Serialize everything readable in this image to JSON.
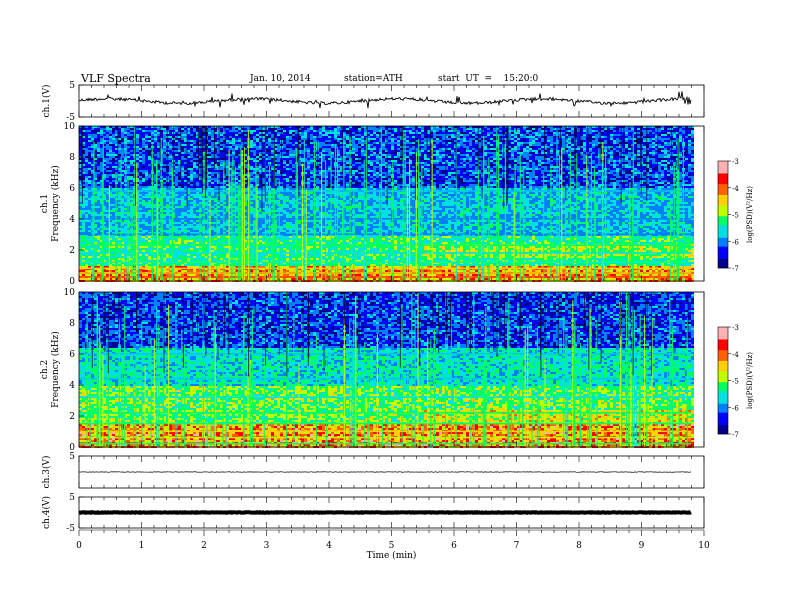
{
  "header": {
    "title": "VLF Spectra",
    "date": "Jan. 10, 2014",
    "station": "station=ATH",
    "start": "start  UT  =    15:20:0"
  },
  "chart_data": [
    {
      "type": "line",
      "panel": "ch1-waveform",
      "ylabel": "ch.1(V)",
      "ylim": [
        -5,
        5
      ],
      "yticks": [
        "5",
        "-5"
      ],
      "xlim": [
        0,
        10
      ],
      "data_extent_min": 9.8,
      "baseline": 0,
      "note": "noisy waveform with spikes"
    },
    {
      "type": "heatmap",
      "panel": "ch1-spectrogram",
      "ylabel": "ch.1 Frequency (kHz)",
      "ylim": [
        0,
        10
      ],
      "yticks": [
        "0",
        "2",
        "4",
        "6",
        "8",
        "10"
      ],
      "xlim": [
        0,
        10
      ],
      "colorbar": {
        "label": "log(PSD)(V²/Hz)",
        "range": [
          -7,
          -3
        ],
        "ticks": [
          "-3",
          "-4",
          "-5",
          "-6",
          "-7"
        ]
      }
    },
    {
      "type": "heatmap",
      "panel": "ch2-spectrogram",
      "ylabel": "ch.2 Frequency (kHz)",
      "ylim": [
        0,
        10
      ],
      "yticks": [
        "0",
        "2",
        "4",
        "6",
        "8",
        "10"
      ],
      "xlim": [
        0,
        10
      ],
      "colorbar": {
        "label": "log(PSD)(V²/Hz)",
        "range": [
          -7,
          -3
        ],
        "ticks": [
          "-3",
          "-4",
          "-5",
          "-6",
          "-7"
        ]
      }
    },
    {
      "type": "line",
      "panel": "ch3-waveform",
      "ylabel": "ch.3(V)",
      "ylim": [
        -5,
        5
      ],
      "yticks": [
        "5"
      ],
      "xlim": [
        0,
        10
      ],
      "baseline": 0
    },
    {
      "type": "line",
      "panel": "ch4-waveform",
      "ylabel": "ch.4(V)",
      "ylim": [
        -5,
        5
      ],
      "yticks": [
        "5",
        "-5"
      ],
      "xlim": [
        0,
        10
      ],
      "baseline": 0,
      "note": "thick constant trace"
    }
  ],
  "x_axis": {
    "label": "Time  (min)",
    "ticks": [
      0,
      1,
      2,
      3,
      4,
      5,
      6,
      7,
      8,
      9,
      10
    ],
    "tick_labels": [
      "0",
      "1",
      "2",
      "3",
      "4",
      "5",
      "6",
      "7",
      "8",
      "9",
      "10"
    ]
  },
  "colors": {
    "axis": "#000000",
    "colormap": [
      "#00008c",
      "#0000ff",
      "#0080ff",
      "#00e0e0",
      "#00ff60",
      "#c0ff00",
      "#ffd000",
      "#ff6000",
      "#ff0000",
      "#ffb0b0"
    ]
  }
}
